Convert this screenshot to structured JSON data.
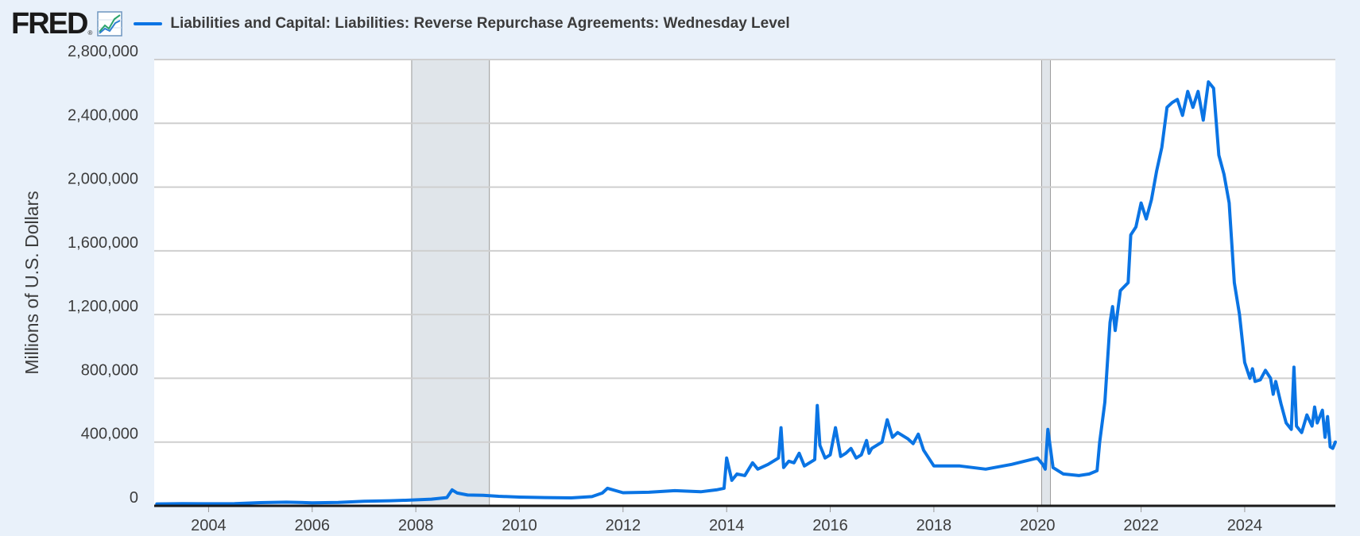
{
  "header": {
    "logo_text": "FRED",
    "logo_reg": "®",
    "graph_icon": "line-chart-icon",
    "legend_label": "Liabilities and Capital: Liabilities: Reverse Repurchase Agreements: Wednesday Level"
  },
  "colors": {
    "background": "#e9f1fa",
    "plot_background": "#ffffff",
    "series": "#0a74e4",
    "grid": "#cfcfcf",
    "recession": "#e0e5ea"
  },
  "chart_data": {
    "type": "line",
    "title": "",
    "xlabel": "",
    "ylabel": "Millions of U.S. Dollars",
    "xlim": [
      2002.95,
      2025.75
    ],
    "ylim": [
      0,
      2800000
    ],
    "grid": true,
    "legend_position": "top",
    "x_ticks": [
      2004,
      2006,
      2008,
      2010,
      2012,
      2014,
      2016,
      2018,
      2020,
      2022,
      2024
    ],
    "x_tick_labels": [
      "2004",
      "2006",
      "2008",
      "2010",
      "2012",
      "2014",
      "2016",
      "2018",
      "2020",
      "2022",
      "2024"
    ],
    "y_ticks": [
      0,
      400000,
      800000,
      1200000,
      1600000,
      2000000,
      2400000,
      2800000
    ],
    "y_tick_labels": [
      "0",
      "400,000",
      "800,000",
      "1,200,000",
      "1,600,000",
      "2,000,000",
      "2,400,000",
      "2,800,000"
    ],
    "recessions": [
      {
        "start": 2007.92,
        "end": 2009.42
      },
      {
        "start": 2020.08,
        "end": 2020.25
      }
    ],
    "series": [
      {
        "x": [
          2003.0,
          2003.5,
          2004.0,
          2004.5,
          2005.0,
          2005.5,
          2006.0,
          2006.5,
          2007.0,
          2007.5,
          2007.9,
          2008.3,
          2008.6,
          2008.7,
          2008.8,
          2009.0,
          2009.3,
          2009.6,
          2010.0,
          2010.5,
          2011.0,
          2011.4,
          2011.6,
          2011.7,
          2012.0,
          2012.5,
          2013.0,
          2013.5,
          2013.8,
          2013.95,
          2014.0,
          2014.1,
          2014.2,
          2014.35,
          2014.5,
          2014.6,
          2014.8,
          2015.0,
          2015.05,
          2015.1,
          2015.2,
          2015.3,
          2015.4,
          2015.5,
          2015.6,
          2015.7,
          2015.75,
          2015.8,
          2015.9,
          2016.0,
          2016.1,
          2016.2,
          2016.3,
          2016.4,
          2016.5,
          2016.6,
          2016.7,
          2016.75,
          2016.8,
          2016.9,
          2017.0,
          2017.1,
          2017.2,
          2017.3,
          2017.5,
          2017.6,
          2017.7,
          2017.8,
          2018.0,
          2018.5,
          2019.0,
          2019.5,
          2020.0,
          2020.1,
          2020.15,
          2020.2,
          2020.3,
          2020.5,
          2020.8,
          2021.0,
          2021.15,
          2021.2,
          2021.3,
          2021.4,
          2021.45,
          2021.5,
          2021.6,
          2021.75,
          2021.8,
          2021.9,
          2022.0,
          2022.1,
          2022.2,
          2022.3,
          2022.4,
          2022.5,
          2022.6,
          2022.7,
          2022.8,
          2022.9,
          2023.0,
          2023.1,
          2023.2,
          2023.3,
          2023.4,
          2023.5,
          2023.6,
          2023.7,
          2023.8,
          2023.9,
          2024.0,
          2024.1,
          2024.15,
          2024.2,
          2024.3,
          2024.4,
          2024.5,
          2024.55,
          2024.6,
          2024.7,
          2024.8,
          2024.9,
          2024.95,
          2025.0,
          2025.1,
          2025.2,
          2025.3,
          2025.35,
          2025.4,
          2025.5,
          2025.55,
          2025.6,
          2025.65,
          2025.7,
          2025.75
        ],
        "values": [
          12000,
          14000,
          13000,
          14000,
          20000,
          23000,
          19000,
          21000,
          29000,
          32000,
          36000,
          42000,
          52000,
          100000,
          80000,
          68000,
          66000,
          60000,
          55000,
          52000,
          50000,
          58000,
          80000,
          110000,
          82000,
          85000,
          95000,
          88000,
          100000,
          110000,
          300000,
          160000,
          200000,
          190000,
          270000,
          230000,
          260000,
          300000,
          490000,
          240000,
          280000,
          270000,
          330000,
          250000,
          270000,
          290000,
          630000,
          380000,
          300000,
          320000,
          490000,
          310000,
          330000,
          360000,
          300000,
          320000,
          410000,
          330000,
          360000,
          380000,
          400000,
          540000,
          430000,
          460000,
          420000,
          390000,
          450000,
          350000,
          250000,
          250000,
          230000,
          260000,
          300000,
          260000,
          230000,
          480000,
          240000,
          200000,
          190000,
          200000,
          220000,
          400000,
          650000,
          1150000,
          1250000,
          1100000,
          1350000,
          1400000,
          1700000,
          1750000,
          1900000,
          1800000,
          1920000,
          2100000,
          2250000,
          2500000,
          2530000,
          2550000,
          2450000,
          2600000,
          2500000,
          2600000,
          2420000,
          2660000,
          2620000,
          2200000,
          2080000,
          1900000,
          1400000,
          1200000,
          900000,
          800000,
          860000,
          780000,
          790000,
          850000,
          800000,
          700000,
          780000,
          640000,
          520000,
          480000,
          870000,
          500000,
          460000,
          570000,
          500000,
          620000,
          520000,
          600000,
          430000,
          560000,
          370000,
          360000,
          400000
        ]
      }
    ]
  }
}
